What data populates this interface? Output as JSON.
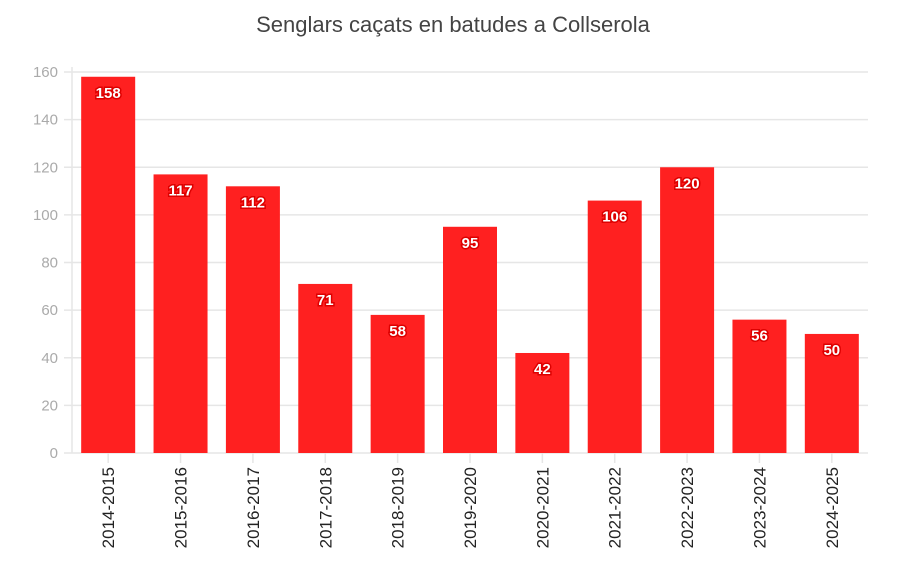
{
  "chart_data": {
    "type": "bar",
    "title": "Senglars caçats en batudes a Collserola",
    "categories": [
      "2014-2015",
      "2015-2016",
      "2016-2017",
      "2017-2018",
      "2018-2019",
      "2019-2020",
      "2020-2021",
      "2021-2022",
      "2022-2023",
      "2023-2024",
      "2024-2025"
    ],
    "values": [
      158,
      117,
      112,
      71,
      58,
      95,
      42,
      106,
      120,
      56,
      50
    ],
    "ylim": [
      0,
      160
    ],
    "yticks": [
      0,
      20,
      40,
      60,
      80,
      100,
      120,
      140,
      160
    ],
    "grid": true,
    "bar_color": "#ff2020",
    "data_labels": true
  }
}
